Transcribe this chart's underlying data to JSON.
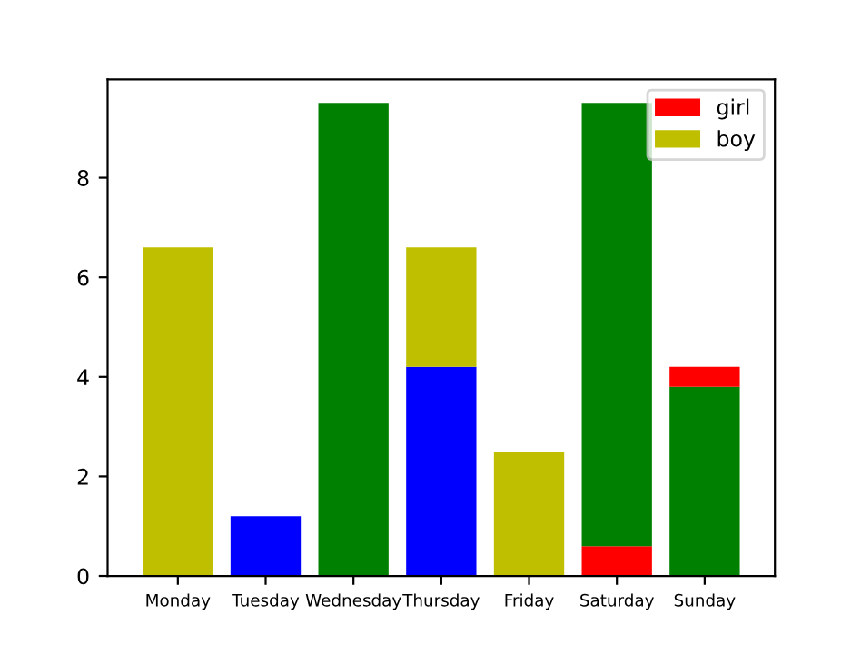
{
  "chart_data": {
    "type": "bar",
    "stacked": true,
    "categories": [
      "Monday",
      "Tuesday",
      "Wednesday",
      "Thursday",
      "Friday",
      "Saturday",
      "Sunday"
    ],
    "series": [
      {
        "name": "girl",
        "color": "#ff0000",
        "values": [
          6.6,
          1.2,
          9.5,
          4.2,
          2.5,
          0.6,
          3.8
        ],
        "colors": [
          "#bfbf00",
          "#0000ff",
          "#008000",
          "#0000ff",
          "#bfbf00",
          "#ff0000",
          "#008000"
        ]
      },
      {
        "name": "boy",
        "color": "#bfbf00",
        "values": [
          null,
          null,
          null,
          2.4,
          null,
          8.9,
          0.4
        ],
        "colors": [
          "#bfbf00",
          "#bfbf00",
          "#bfbf00",
          "#bfbf00",
          "#bfbf00",
          "#008000",
          "#ff0000"
        ]
      }
    ],
    "ylim": [
      0,
      9.975
    ],
    "yticks": [
      0,
      2,
      4,
      6,
      8
    ],
    "grid": false,
    "legend": "top right"
  }
}
